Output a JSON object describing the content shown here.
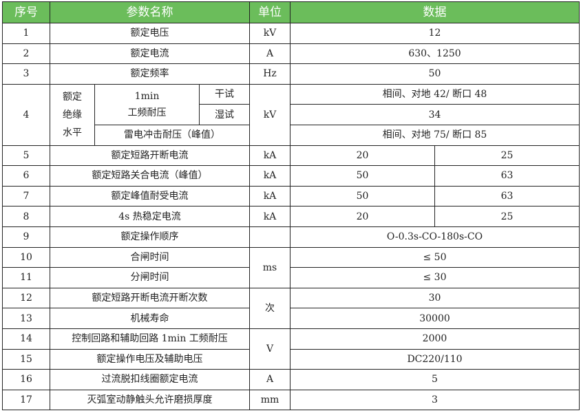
{
  "colors": {
    "header_bg": "#6bbd5b",
    "header_text": "#ffffff",
    "border": "#222222"
  },
  "header": {
    "no": "序号",
    "name": "参数名称",
    "unit": "单位",
    "data": "数据"
  },
  "rows": [
    {
      "no": "1",
      "name": "额定电压",
      "unit": "kV",
      "value": "12"
    },
    {
      "no": "2",
      "name": "额定电流",
      "unit": "A",
      "value": "630、1250"
    },
    {
      "no": "3",
      "name": "额定频率",
      "unit": "Hz",
      "value": "50"
    },
    {
      "no": "4",
      "group": [
        "额定",
        "绝缘",
        "水平"
      ],
      "sub_name_lines": [
        "1min",
        "工频耐压"
      ],
      "dry": "干试",
      "wet": "湿试",
      "lightning": "雷电冲击耐压（峰值）",
      "unit": "kV",
      "dry_value": "相间、对地 42/ 断口 48",
      "wet_value": "34",
      "lightning_value": "相间、对地 75/ 断口 85"
    },
    {
      "no": "5",
      "name": "额定短路开断电流",
      "unit": "kA",
      "values": [
        "20",
        "25"
      ]
    },
    {
      "no": "6",
      "name": "额定短路关合电流（峰值）",
      "unit": "kA",
      "values": [
        "50",
        "63"
      ]
    },
    {
      "no": "7",
      "name": "额定峰值耐受电流",
      "unit": "kA",
      "values": [
        "50",
        "63"
      ]
    },
    {
      "no": "8",
      "name": "4s 热稳定电流",
      "unit": "kA",
      "values": [
        "20",
        "25"
      ]
    },
    {
      "no": "9",
      "name": "额定操作顺序",
      "unit": "",
      "value": "O-0.3s-CO-180s-CO"
    },
    {
      "no": "10",
      "name": "合闸时间",
      "unit": "ms",
      "unit_span": 2,
      "value": "≤ 50"
    },
    {
      "no": "11",
      "name": "分闸时间",
      "value": "≤ 30"
    },
    {
      "no": "12",
      "name": "额定短路开断电流开断次数",
      "unit": "次",
      "unit_span": 2,
      "value": "30"
    },
    {
      "no": "13",
      "name": "机械寿命",
      "value": "30000"
    },
    {
      "no": "14",
      "name": "控制回路和辅助回路 1min 工频耐压",
      "unit": "V",
      "unit_span": 2,
      "value": "2000"
    },
    {
      "no": "15",
      "name": "额定操作电压及辅助电压",
      "value": "DC220/110"
    },
    {
      "no": "16",
      "name": "过流脱扣线圈额定电流",
      "unit": "A",
      "value": "5"
    },
    {
      "no": "17",
      "name": "灭弧室动静触头允许磨损厚度",
      "unit": "mm",
      "value": "3"
    }
  ]
}
